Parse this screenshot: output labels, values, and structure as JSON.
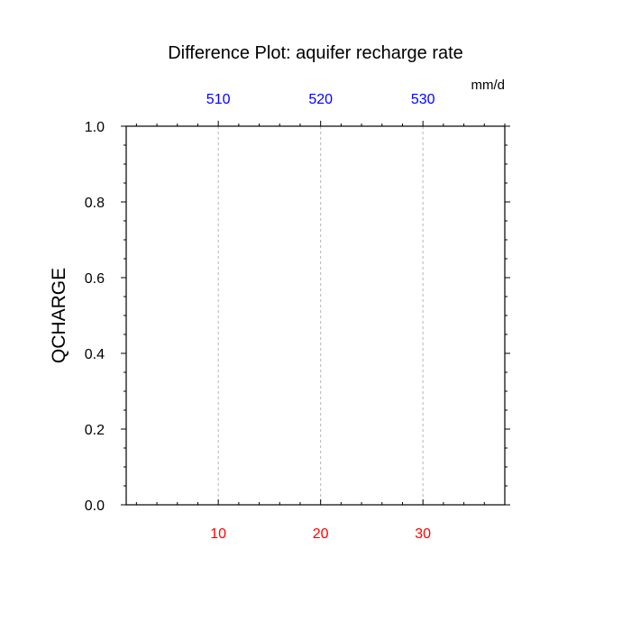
{
  "chart_data": {
    "type": "line",
    "title": "Difference Plot: aquifer recharge rate",
    "units": "mm/d",
    "ylabel": "QCHARGE",
    "xlabel": "",
    "ylim": [
      0,
      1
    ],
    "yticks": [
      0,
      0.2,
      0.4,
      0.6,
      0.8,
      1.0
    ],
    "ytick_labels": [
      "0.0",
      "0.2",
      "0.4",
      "0.6",
      "0.8",
      "1.0"
    ],
    "xlim_bottom": [
      1,
      38
    ],
    "xticks_bottom": [
      10,
      20,
      30
    ],
    "xtick_labels_bottom": [
      "10",
      "20",
      "30"
    ],
    "xlim_top": [
      501,
      538
    ],
    "xticks_top": [
      510,
      520,
      530
    ],
    "xtick_labels_top": [
      "510",
      "520",
      "530"
    ],
    "grid": "vertical-dashed",
    "series": [],
    "colors": {
      "bottom_axis_labels": "#ff0000",
      "top_axis_labels": "#0000ff",
      "axis": "#000000",
      "grid": "#b4b4b4"
    }
  }
}
